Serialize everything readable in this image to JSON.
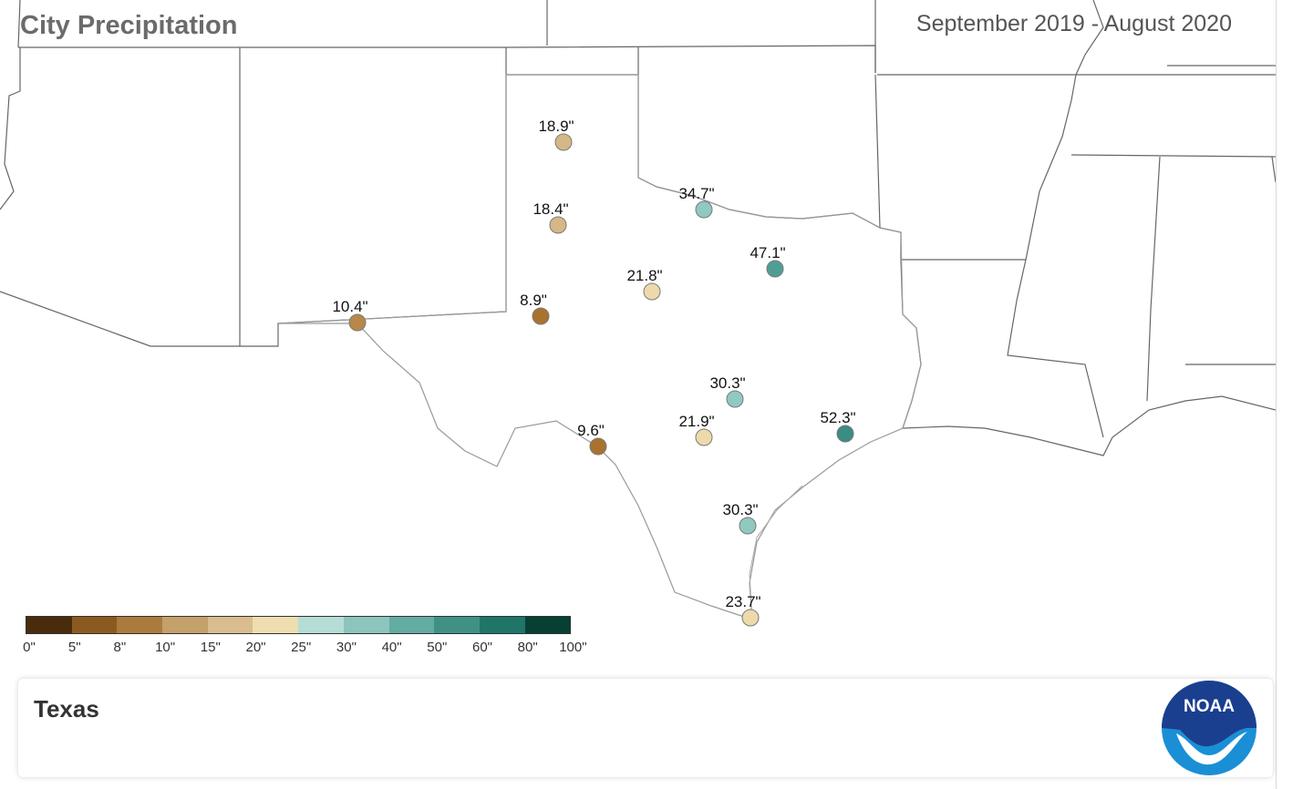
{
  "header": {
    "title": "City Precipitation",
    "date_range": "September 2019 - August 2020"
  },
  "map": {
    "region": "Texas",
    "cities": [
      {
        "value": 18.9,
        "label": "18.9\"",
        "color": "#d6b786"
      },
      {
        "value": 18.4,
        "label": "18.4\"",
        "color": "#d6b786"
      },
      {
        "value": 34.7,
        "label": "34.7\"",
        "color": "#8fc9c0"
      },
      {
        "value": 47.1,
        "label": "47.1\"",
        "color": "#4f9e93"
      },
      {
        "value": 21.8,
        "label": "21.8\"",
        "color": "#eed9aa"
      },
      {
        "value": 8.9,
        "label": "8.9\"",
        "color": "#a9722e"
      },
      {
        "value": 10.4,
        "label": "10.4\"",
        "color": "#b8884a"
      },
      {
        "value": 30.3,
        "label": "30.3\"",
        "color": "#8fc9c0"
      },
      {
        "value": 21.9,
        "label": "21.9\"",
        "color": "#eed9aa"
      },
      {
        "value": 52.3,
        "label": "52.3\"",
        "color": "#3b8c82"
      },
      {
        "value": 9.6,
        "label": "9.6\"",
        "color": "#a9722e"
      },
      {
        "value": 30.3,
        "label": "30.3\"",
        "color": "#8fc9c0"
      },
      {
        "value": 23.7,
        "label": "23.7\"",
        "color": "#eed9aa"
      }
    ]
  },
  "legend": {
    "colors": [
      "#4a2c0c",
      "#8b5a20",
      "#ab7b3e",
      "#c4a06a",
      "#d9bd8e",
      "#eeddb0",
      "#b5ddd6",
      "#8cc5bd",
      "#62aca2",
      "#3f9186",
      "#1e7568",
      "#073f33"
    ],
    "ticks": [
      "0\"",
      "5\"",
      "8\"",
      "10\"",
      "15\"",
      "20\"",
      "25\"",
      "30\"",
      "40\"",
      "50\"",
      "60\"",
      "80\"",
      "100\""
    ]
  },
  "footer": {
    "state": "Texas",
    "logo_text": "NOAA"
  }
}
